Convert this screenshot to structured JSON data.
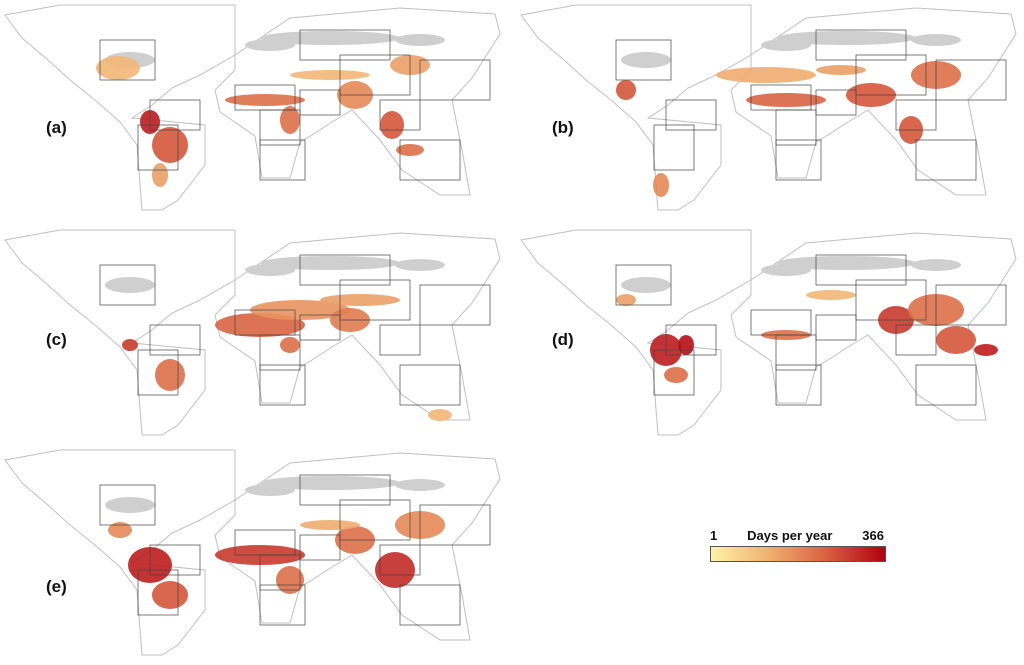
{
  "panels": [
    {
      "id": "a",
      "label": "(a)"
    },
    {
      "id": "b",
      "label": "(b)"
    },
    {
      "id": "c",
      "label": "(c)"
    },
    {
      "id": "d",
      "label": "(d)"
    },
    {
      "id": "e",
      "label": "(e)"
    }
  ],
  "legend": {
    "title": "Days per year",
    "min": "1",
    "max": "366",
    "color_low": "#fdf3a8",
    "color_high": "#b00010"
  },
  "colors": {
    "outline": "#bfbfbf",
    "region": "#444444",
    "no_data": "#cfcfcf"
  }
}
